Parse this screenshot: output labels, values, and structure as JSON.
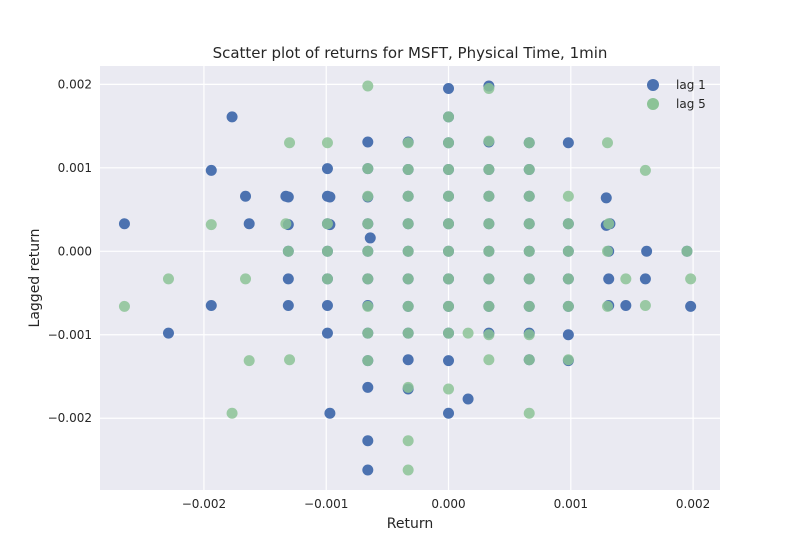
{
  "chart_data": {
    "type": "scatter",
    "title": "Scatter plot of returns for MSFT, Physical Time, 1min",
    "xlabel": "Return",
    "ylabel": "Lagged return",
    "xlim": [
      -0.00285,
      0.00222
    ],
    "ylim": [
      -0.00286,
      0.00222
    ],
    "x_ticks": [
      -0.002,
      -0.001,
      0.0,
      0.001,
      0.002
    ],
    "x_tick_labels": [
      "−0.002",
      "−0.001",
      "0.000",
      "0.001",
      "0.002"
    ],
    "y_ticks": [
      -0.002,
      -0.001,
      0.0,
      0.001,
      0.002
    ],
    "y_tick_labels": [
      "−0.002",
      "−0.001",
      "0.000",
      "0.001",
      "0.002"
    ],
    "grid": true,
    "legend_position": "top-right",
    "series": [
      {
        "name": "lag 1",
        "color": "#4c72b0",
        "points": [
          [
            -0.00265,
            0.00033
          ],
          [
            -0.00229,
            -0.00098
          ],
          [
            -0.00194,
            0.00097
          ],
          [
            -0.00194,
            -0.00065
          ],
          [
            -0.00177,
            0.00161
          ],
          [
            -0.00166,
            0.00066
          ],
          [
            -0.00163,
            0.00033
          ],
          [
            -0.00133,
            0.00066
          ],
          [
            -0.00131,
            0.00065
          ],
          [
            -0.00131,
            0.00032
          ],
          [
            -0.00131,
            0.0
          ],
          [
            -0.00131,
            -0.00033
          ],
          [
            -0.00131,
            -0.00065
          ],
          [
            -0.00099,
            0.00099
          ],
          [
            -0.00099,
            0.00066
          ],
          [
            -0.00097,
            0.00065
          ],
          [
            -0.00099,
            0.00033
          ],
          [
            -0.00097,
            0.00032
          ],
          [
            -0.00099,
            0.0
          ],
          [
            -0.00099,
            -0.00033
          ],
          [
            -0.00099,
            -0.00065
          ],
          [
            -0.00099,
            -0.00098
          ],
          [
            -0.00097,
            -0.00194
          ],
          [
            -0.00066,
            0.00131
          ],
          [
            -0.00066,
            0.00099
          ],
          [
            -0.00066,
            0.00065
          ],
          [
            -0.00066,
            0.00033
          ],
          [
            -0.00064,
            0.00016
          ],
          [
            -0.00066,
            0.0
          ],
          [
            -0.00066,
            -0.00033
          ],
          [
            -0.00066,
            -0.00065
          ],
          [
            -0.00066,
            -0.00098
          ],
          [
            -0.00066,
            -0.00131
          ],
          [
            -0.00066,
            -0.00163
          ],
          [
            -0.00066,
            -0.00227
          ],
          [
            -0.00066,
            -0.00262
          ],
          [
            -0.00033,
            0.00131
          ],
          [
            -0.00033,
            0.00098
          ],
          [
            -0.00033,
            0.00066
          ],
          [
            -0.00033,
            0.00033
          ],
          [
            -0.00033,
            0.0
          ],
          [
            -0.00033,
            -0.00033
          ],
          [
            -0.00033,
            -0.00066
          ],
          [
            -0.00033,
            -0.00098
          ],
          [
            -0.00033,
            -0.0013
          ],
          [
            -0.00033,
            -0.00165
          ],
          [
            0.0,
            0.00195
          ],
          [
            0.0,
            0.00161
          ],
          [
            0.0,
            0.0013
          ],
          [
            0.0,
            0.00098
          ],
          [
            0.0,
            0.00066
          ],
          [
            0.0,
            0.00033
          ],
          [
            0.0,
            0.0
          ],
          [
            0.0,
            -0.00033
          ],
          [
            0.0,
            -0.00066
          ],
          [
            0.0,
            -0.00098
          ],
          [
            0.0,
            -0.00131
          ],
          [
            0.0,
            -0.00194
          ],
          [
            0.00016,
            -0.00177
          ],
          [
            0.00033,
            0.00198
          ],
          [
            0.00033,
            0.00131
          ],
          [
            0.00033,
            0.00098
          ],
          [
            0.00033,
            0.00066
          ],
          [
            0.00033,
            0.00033
          ],
          [
            0.00033,
            0.0
          ],
          [
            0.00033,
            -0.00033
          ],
          [
            0.00033,
            -0.00066
          ],
          [
            0.00033,
            -0.00098
          ],
          [
            0.00066,
            0.0013
          ],
          [
            0.00066,
            0.00098
          ],
          [
            0.00066,
            0.00066
          ],
          [
            0.00066,
            0.00033
          ],
          [
            0.00066,
            0.0
          ],
          [
            0.00066,
            -0.00033
          ],
          [
            0.00066,
            -0.00066
          ],
          [
            0.00066,
            -0.00098
          ],
          [
            0.00066,
            -0.0013
          ],
          [
            0.00098,
            0.0013
          ],
          [
            0.00098,
            0.00033
          ],
          [
            0.00098,
            0.0
          ],
          [
            0.00098,
            -0.00033
          ],
          [
            0.00098,
            -0.00066
          ],
          [
            0.00098,
            -0.001
          ],
          [
            0.00098,
            -0.00131
          ],
          [
            0.00129,
            0.00064
          ],
          [
            0.00129,
            0.00031
          ],
          [
            0.00132,
            0.00033
          ],
          [
            0.00131,
            0.0
          ],
          [
            0.00131,
            -0.00033
          ],
          [
            0.00131,
            -0.00065
          ],
          [
            0.00145,
            -0.00065
          ],
          [
            0.00162,
            0.0
          ],
          [
            0.00161,
            -0.00033
          ],
          [
            0.00195,
            0.0
          ],
          [
            0.00198,
            -0.00066
          ]
        ]
      },
      {
        "name": "lag 5",
        "color": "#8cc397",
        "points": [
          [
            -0.00265,
            -0.00066
          ],
          [
            -0.00229,
            -0.00033
          ],
          [
            -0.00194,
            0.00032
          ],
          [
            -0.00177,
            -0.00194
          ],
          [
            -0.00166,
            -0.00033
          ],
          [
            -0.00163,
            -0.00131
          ],
          [
            -0.0013,
            0.0013
          ],
          [
            -0.00133,
            0.00033
          ],
          [
            -0.00131,
            0.0
          ],
          [
            -0.0013,
            -0.0013
          ],
          [
            -0.00099,
            0.0013
          ],
          [
            -0.00099,
            0.00033
          ],
          [
            -0.00099,
            0.0
          ],
          [
            -0.00099,
            -0.00033
          ],
          [
            -0.00066,
            0.00198
          ],
          [
            -0.00066,
            0.00099
          ],
          [
            -0.00066,
            0.00066
          ],
          [
            -0.00066,
            0.00033
          ],
          [
            -0.00066,
            0.0
          ],
          [
            -0.00066,
            -0.00033
          ],
          [
            -0.00066,
            -0.00066
          ],
          [
            -0.00066,
            -0.00098
          ],
          [
            -0.00066,
            -0.00131
          ],
          [
            -0.00033,
            0.0013
          ],
          [
            -0.00033,
            0.00098
          ],
          [
            -0.00033,
            0.00066
          ],
          [
            -0.00033,
            0.00033
          ],
          [
            -0.00033,
            0.0
          ],
          [
            -0.00033,
            -0.00033
          ],
          [
            -0.00033,
            -0.00066
          ],
          [
            -0.00033,
            -0.00098
          ],
          [
            -0.00033,
            -0.00163
          ],
          [
            -0.00033,
            -0.00227
          ],
          [
            -0.00033,
            -0.00262
          ],
          [
            0.0,
            0.00161
          ],
          [
            0.0,
            0.0013
          ],
          [
            0.0,
            0.00098
          ],
          [
            0.0,
            0.00066
          ],
          [
            0.0,
            0.00033
          ],
          [
            0.0,
            0.0
          ],
          [
            0.0,
            -0.00033
          ],
          [
            0.0,
            -0.00066
          ],
          [
            0.0,
            -0.00098
          ],
          [
            0.0,
            -0.00165
          ],
          [
            0.00016,
            -0.00098
          ],
          [
            0.00033,
            0.00195
          ],
          [
            0.00033,
            0.00132
          ],
          [
            0.00033,
            0.00098
          ],
          [
            0.00033,
            0.00066
          ],
          [
            0.00033,
            0.00033
          ],
          [
            0.00033,
            0.0
          ],
          [
            0.00033,
            -0.00033
          ],
          [
            0.00033,
            -0.00066
          ],
          [
            0.00033,
            -0.001
          ],
          [
            0.00033,
            -0.0013
          ],
          [
            0.00066,
            0.0013
          ],
          [
            0.00066,
            0.00098
          ],
          [
            0.00066,
            0.00066
          ],
          [
            0.00066,
            0.00033
          ],
          [
            0.00066,
            0.0
          ],
          [
            0.00066,
            -0.00033
          ],
          [
            0.00066,
            -0.00066
          ],
          [
            0.00066,
            -0.001
          ],
          [
            0.00066,
            -0.0013
          ],
          [
            0.00066,
            -0.00194
          ],
          [
            0.00098,
            0.00066
          ],
          [
            0.00098,
            0.00033
          ],
          [
            0.00098,
            0.0
          ],
          [
            0.00098,
            -0.00033
          ],
          [
            0.00098,
            -0.00066
          ],
          [
            0.00098,
            -0.0013
          ],
          [
            0.0013,
            0.0013
          ],
          [
            0.0013,
            0.0
          ],
          [
            0.0013,
            -0.00066
          ],
          [
            0.00131,
            0.00033
          ],
          [
            0.00145,
            -0.00033
          ],
          [
            0.00161,
            0.00097
          ],
          [
            0.00161,
            -0.00065
          ],
          [
            0.00195,
            0.0
          ],
          [
            0.00198,
            -0.00033
          ]
        ]
      }
    ]
  }
}
